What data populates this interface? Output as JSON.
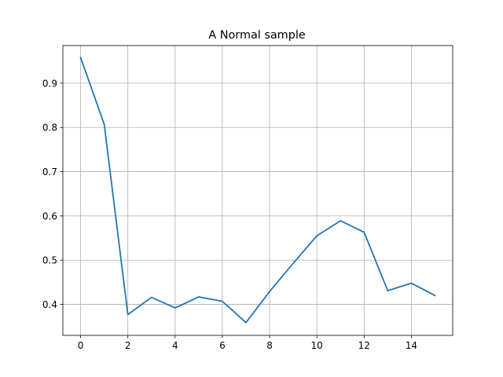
{
  "chart_data": {
    "type": "line",
    "title": "A Normal sample",
    "xlabel": "",
    "ylabel": "",
    "grid": true,
    "xlim": [
      -0.75,
      15.75
    ],
    "ylim": [
      0.33,
      0.985
    ],
    "xticks": [
      0,
      2,
      4,
      6,
      8,
      10,
      12,
      14
    ],
    "xtick_labels": [
      "0",
      "2",
      "4",
      "6",
      "8",
      "10",
      "12",
      "14"
    ],
    "yticks": [
      0.4,
      0.5,
      0.6,
      0.7,
      0.8,
      0.9
    ],
    "ytick_labels": [
      "0.4",
      "0.5",
      "0.6",
      "0.7",
      "0.8",
      "0.9"
    ],
    "colors": {
      "line": "#1f77b4",
      "grid": "#b0b0b0",
      "axes": "#000000"
    },
    "series": [
      {
        "x": [
          0,
          1,
          2,
          3,
          4,
          5,
          6,
          7,
          8,
          9,
          10,
          11,
          12,
          13,
          14,
          15
        ],
        "y": [
          0.958,
          0.807,
          0.377,
          0.416,
          0.392,
          0.417,
          0.407,
          0.359,
          0.429,
          0.493,
          0.555,
          0.589,
          0.563,
          0.431,
          0.448,
          0.42
        ]
      }
    ]
  }
}
